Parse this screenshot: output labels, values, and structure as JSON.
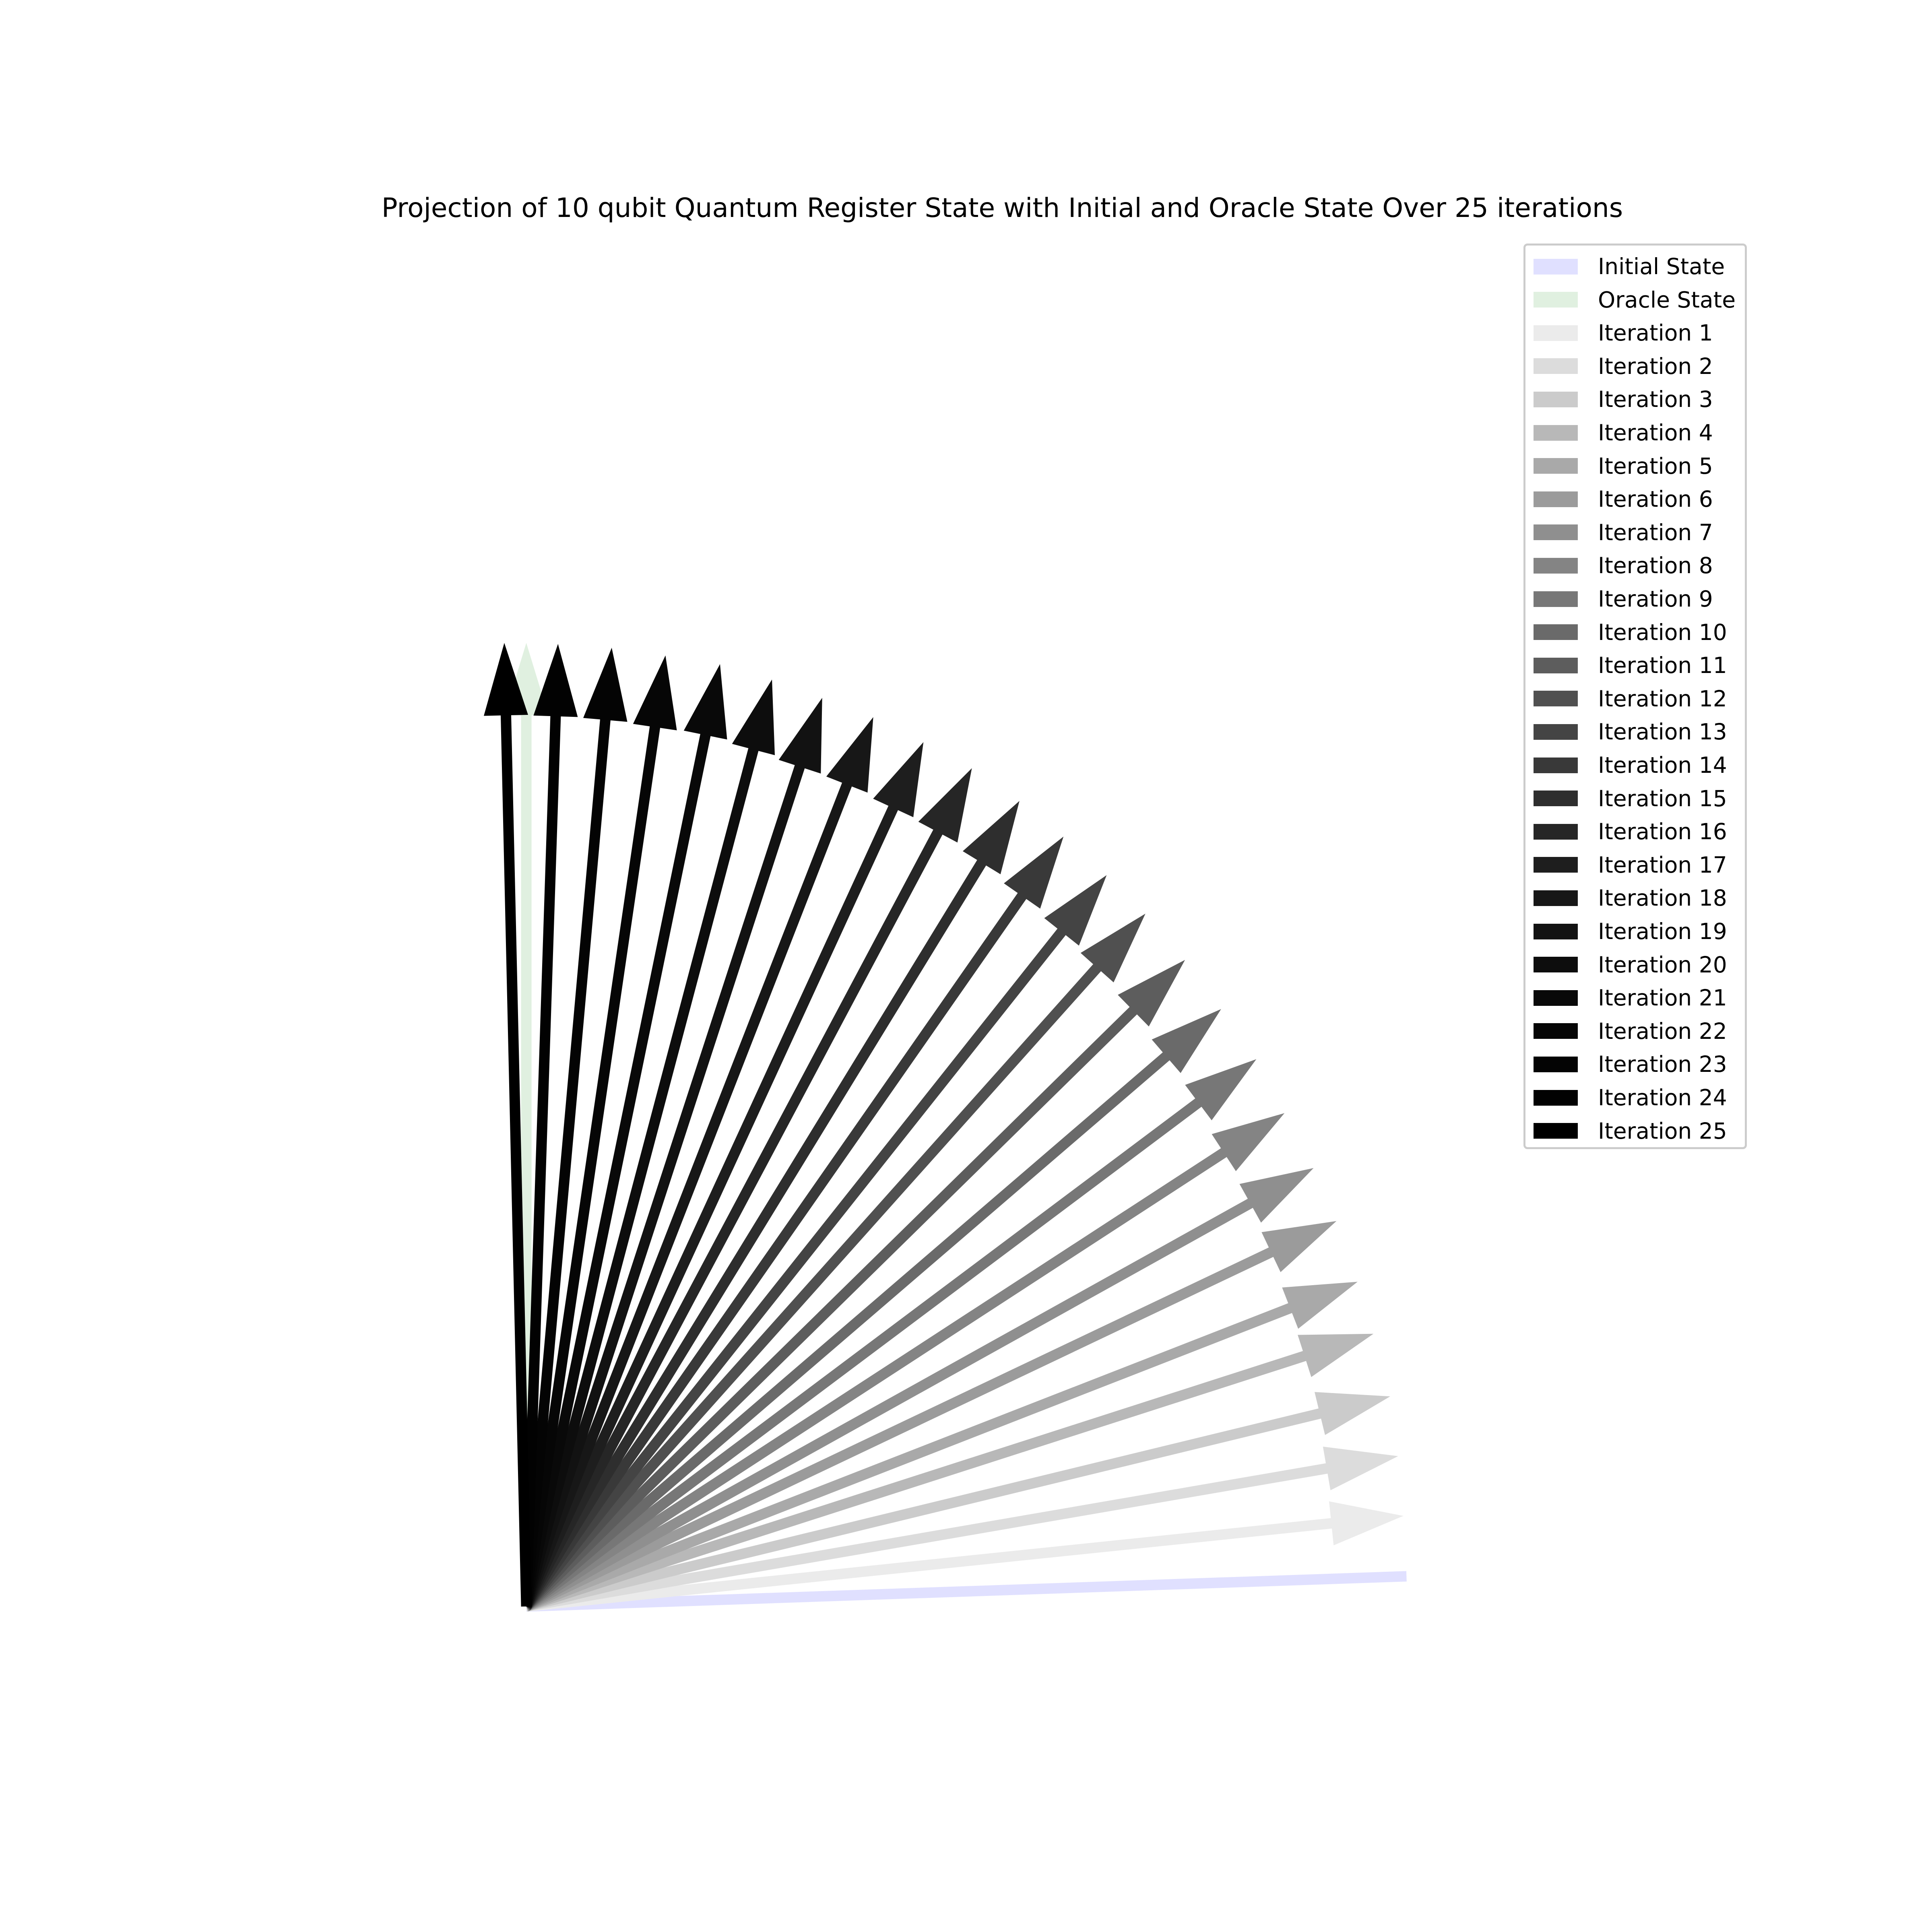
{
  "chart_data": {
    "type": "quiver",
    "title": "Projection of 10 qubit Quantum Register State with Initial and Oracle State Over 25 iterations",
    "xlabel": "",
    "ylabel": "",
    "axes_visible": false,
    "grid": false,
    "legend_position": "top-right",
    "xlim": [
      -0.2,
      1.45
    ],
    "ylim": [
      -0.2,
      1.45
    ],
    "reference_vectors": [
      {
        "name": "Initial State",
        "x": 0.9995,
        "y": 0.0313,
        "color": "#e0e0ff"
      },
      {
        "name": "Oracle State",
        "x": 0.0,
        "y": 1.0,
        "color": "#e0f0e0"
      }
    ],
    "series": [
      {
        "name": "Iteration 1",
        "x": 0.996,
        "y": 0.094,
        "color": "#ebebeb"
      },
      {
        "name": "Iteration 2",
        "x": 0.99,
        "y": 0.156,
        "color": "#dcdcdc"
      },
      {
        "name": "Iteration 3",
        "x": 0.981,
        "y": 0.218,
        "color": "#cbcbcb"
      },
      {
        "name": "Iteration 4",
        "x": 0.962,
        "y": 0.283,
        "color": "#b8b8b8"
      },
      {
        "name": "Iteration 5",
        "x": 0.944,
        "y": 0.337,
        "color": "#a9a9a9"
      },
      {
        "name": "Iteration 6",
        "x": 0.92,
        "y": 0.4,
        "color": "#9b9b9b"
      },
      {
        "name": "Iteration 7",
        "x": 0.894,
        "y": 0.455,
        "color": "#8f8f8f"
      },
      {
        "name": "Iteration 8",
        "x": 0.861,
        "y": 0.512,
        "color": "#848484"
      },
      {
        "name": "Iteration 9",
        "x": 0.829,
        "y": 0.568,
        "color": "#777777"
      },
      {
        "name": "Iteration 10",
        "x": 0.789,
        "y": 0.62,
        "color": "#6a6a6a"
      },
      {
        "name": "Iteration 11",
        "x": 0.748,
        "y": 0.671,
        "color": "#5d5d5d"
      },
      {
        "name": "Iteration 12",
        "x": 0.703,
        "y": 0.719,
        "color": "#505050"
      },
      {
        "name": "Iteration 13",
        "x": 0.659,
        "y": 0.759,
        "color": "#444444"
      },
      {
        "name": "Iteration 14",
        "x": 0.61,
        "y": 0.799,
        "color": "#393939"
      },
      {
        "name": "Iteration 15",
        "x": 0.56,
        "y": 0.836,
        "color": "#2e2e2e"
      },
      {
        "name": "Iteration 16",
        "x": 0.506,
        "y": 0.87,
        "color": "#262626"
      },
      {
        "name": "Iteration 17",
        "x": 0.451,
        "y": 0.897,
        "color": "#1e1e1e"
      },
      {
        "name": "Iteration 18",
        "x": 0.394,
        "y": 0.923,
        "color": "#171717"
      },
      {
        "name": "Iteration 19",
        "x": 0.336,
        "y": 0.943,
        "color": "#121212"
      },
      {
        "name": "Iteration 20",
        "x": 0.279,
        "y": 0.962,
        "color": "#0d0d0d"
      },
      {
        "name": "Iteration 21",
        "x": 0.22,
        "y": 0.978,
        "color": "#090909"
      },
      {
        "name": "Iteration 22",
        "x": 0.158,
        "y": 0.987,
        "color": "#060606"
      },
      {
        "name": "Iteration 23",
        "x": 0.097,
        "y": 0.995,
        "color": "#040404"
      },
      {
        "name": "Iteration 24",
        "x": 0.036,
        "y": 0.999,
        "color": "#020202"
      },
      {
        "name": "Iteration 25",
        "x": -0.025,
        "y": 1.0,
        "color": "#000000"
      }
    ]
  }
}
